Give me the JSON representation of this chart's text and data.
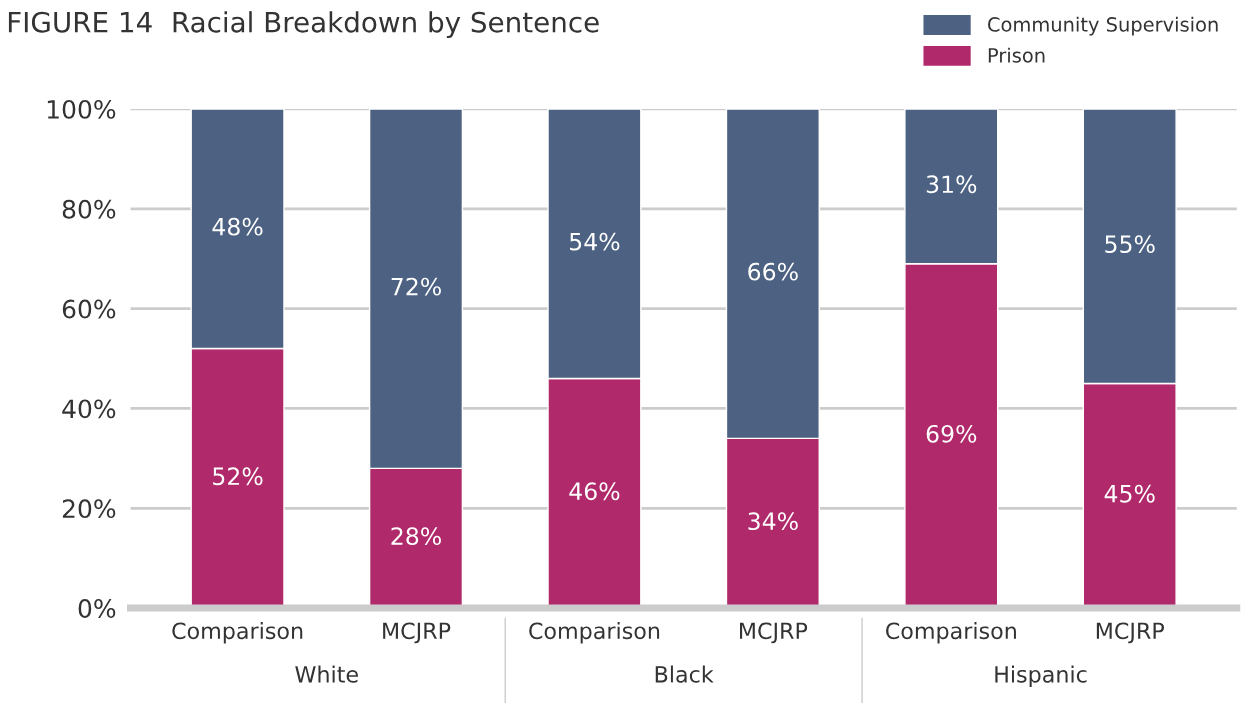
{
  "chart_data": {
    "type": "bar",
    "title": "FIGURE 14  Racial Breakdown by Sentence",
    "categories": [
      "Comparison",
      "MCJRP",
      "Comparison",
      "MCJRP",
      "Comparison",
      "MCJRP"
    ],
    "stacked": true,
    "series": [
      {
        "name": "Prison",
        "color": "#b02a6b",
        "values": [
          52,
          28,
          46,
          34,
          69,
          45
        ],
        "value_labels": [
          "52%",
          "28%",
          "46%",
          "34%",
          "69%",
          "45%"
        ]
      },
      {
        "name": "Community Supervision",
        "color": "#4d6282",
        "values": [
          48,
          72,
          54,
          66,
          31,
          55
        ],
        "value_labels": [
          "48%",
          "72%",
          "54%",
          "66%",
          "31%",
          "55%"
        ]
      }
    ],
    "ylim": [
      0,
      100
    ],
    "yticks": [
      {
        "value": 0,
        "label": "0%"
      },
      {
        "value": 20,
        "label": "20%"
      },
      {
        "value": 40,
        "label": "40%"
      },
      {
        "value": 60,
        "label": "60%"
      },
      {
        "value": 80,
        "label": "80%"
      },
      {
        "value": 100,
        "label": "100%"
      }
    ],
    "grid": "y",
    "legend": "top right",
    "annotations": [
      "White",
      "Black",
      "Hispanic"
    ]
  }
}
